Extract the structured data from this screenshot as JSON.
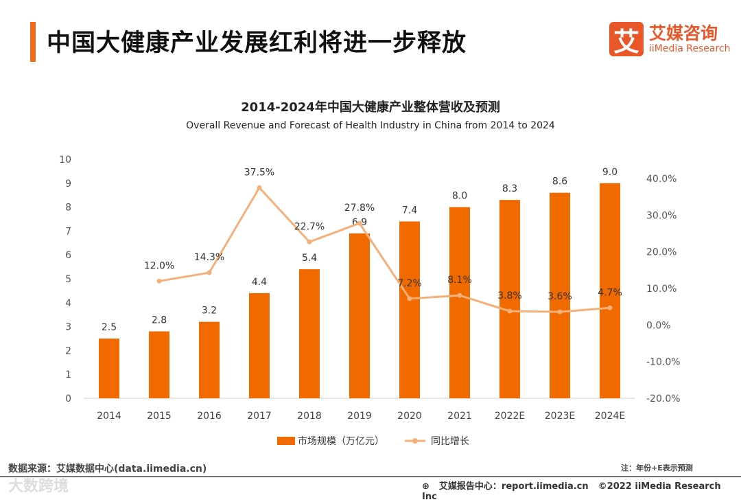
{
  "header": {
    "title": "中国大健康产业发展红利将进一步释放",
    "logo_mark": "艾",
    "logo_cn": "艾媒咨询",
    "logo_en": "iiMedia Research"
  },
  "chart_data": {
    "type": "bar+line",
    "title": "2014-2024年中国大健康产业整体营收及预测",
    "subtitle": "Overall Revenue and Forecast of Health Industry in China from 2014 to 2024",
    "categories": [
      "2014",
      "2015",
      "2016",
      "2017",
      "2018",
      "2019",
      "2020",
      "2021",
      "2022E",
      "2023E",
      "2024E"
    ],
    "series": [
      {
        "name": "市场规模（万亿元）",
        "type": "bar",
        "axis": "left",
        "color": "#f06a00",
        "values": [
          2.5,
          2.8,
          3.2,
          4.4,
          5.4,
          6.9,
          7.4,
          8.0,
          8.3,
          8.6,
          9.0
        ],
        "labels": [
          "2.5",
          "2.8",
          "3.2",
          "4.4",
          "5.4",
          "6.9",
          "7.4",
          "8.0",
          "8.3",
          "8.6",
          "9.0"
        ]
      },
      {
        "name": "同比增长",
        "type": "line",
        "axis": "right",
        "color": "#f5b07a",
        "values": [
          null,
          12.0,
          14.3,
          37.5,
          22.7,
          27.8,
          7.2,
          8.1,
          3.8,
          3.6,
          4.7
        ],
        "labels": [
          null,
          "12.0%",
          "14.3%",
          "37.5%",
          "22.7%",
          "27.8%",
          "7.2%",
          "8.1%",
          "3.8%",
          "3.6%",
          "4.7%"
        ]
      }
    ],
    "ylim": [
      0,
      10
    ],
    "yticks": [
      "0",
      "1",
      "2",
      "3",
      "4",
      "5",
      "6",
      "7",
      "8",
      "9",
      "10"
    ],
    "y2lim": [
      -20,
      40
    ],
    "y2ticks": [
      "-20.0%",
      "-10.0%",
      "0.0%",
      "10.0%",
      "20.0%",
      "30.0%",
      "40.0%"
    ],
    "legend": "bottom-center"
  },
  "footer": {
    "source": "数据来源：艾媒数据中心(data.iimedia.cn)",
    "note": "注：年份+E表示预测",
    "report": "艾媒报告中心：report.iimedia.cn",
    "copyright": "©2022  iiMedia Research  Inc",
    "watermark": "大数跨境"
  }
}
